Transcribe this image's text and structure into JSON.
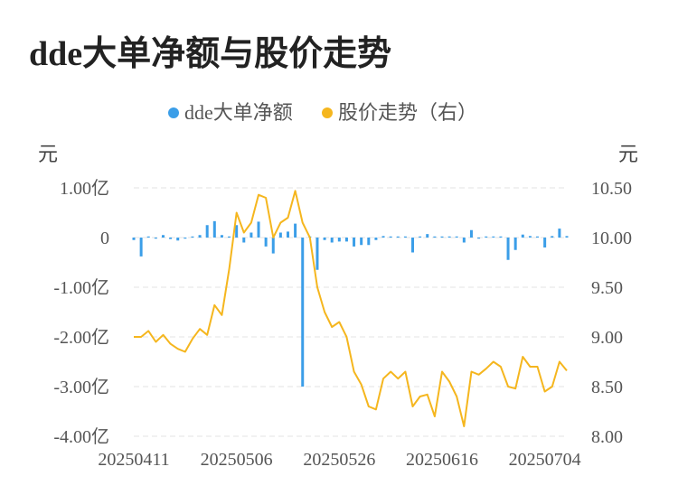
{
  "chart_data": {
    "type": "bar-line",
    "title": "dde大单净额与股价走势",
    "legend": {
      "placement": "top-center",
      "items": [
        {
          "name": "dde大单净额",
          "color": "#3b9ee8"
        },
        {
          "name": "股价走势（右）",
          "color": "#f5b61e"
        }
      ]
    },
    "y_left": {
      "unit_label": "元",
      "range": [
        -4.0,
        1.0
      ],
      "ticks": [
        {
          "value": 1.0,
          "label": "1.00亿"
        },
        {
          "value": 0,
          "label": "0"
        },
        {
          "value": -1.0,
          "label": "-1.00亿"
        },
        {
          "value": -2.0,
          "label": "-2.00亿"
        },
        {
          "value": -3.0,
          "label": "-3.00亿"
        },
        {
          "value": -4.0,
          "label": "-4.00亿"
        }
      ]
    },
    "y_right": {
      "unit_label": "元",
      "range": [
        8.0,
        10.5
      ],
      "ticks": [
        {
          "value": 10.5,
          "label": "10.50"
        },
        {
          "value": 10.0,
          "label": "10.00"
        },
        {
          "value": 9.5,
          "label": "9.50"
        },
        {
          "value": 9.0,
          "label": "9.00"
        },
        {
          "value": 8.5,
          "label": "8.50"
        },
        {
          "value": 8.0,
          "label": "8.00"
        }
      ]
    },
    "x_ticks": [
      {
        "index": 0,
        "label": "20250411"
      },
      {
        "index": 14,
        "label": "20250506"
      },
      {
        "index": 28,
        "label": "20250526"
      },
      {
        "index": 42,
        "label": "20250616"
      },
      {
        "index": 56,
        "label": "20250704"
      }
    ],
    "grid": true,
    "series": [
      {
        "name": "dde大单净额",
        "type": "bar",
        "unit": "亿",
        "values": [
          -0.05,
          -0.38,
          0.02,
          -0.02,
          0.05,
          -0.03,
          -0.06,
          -0.02,
          0.01,
          0.05,
          0.25,
          0.33,
          0.05,
          0.02,
          0.25,
          -0.1,
          0.1,
          0.32,
          -0.18,
          -0.32,
          0.1,
          0.12,
          0.28,
          -3.0,
          0.01,
          -0.65,
          -0.05,
          -0.1,
          -0.08,
          -0.08,
          -0.18,
          -0.15,
          -0.15,
          -0.05,
          0.03,
          0.02,
          0.01,
          0.02,
          -0.3,
          0.0,
          0.07,
          0.0,
          0.02,
          0.0,
          0.0,
          -0.1,
          0.15,
          -0.02,
          0.01,
          0.0,
          0.0,
          -0.45,
          -0.25,
          0.06,
          0.03,
          0.02,
          -0.2,
          0.03,
          0.18,
          0.03
        ]
      },
      {
        "name": "股价走势（右）",
        "type": "line",
        "unit": "元",
        "values": [
          9.0,
          9.0,
          9.06,
          8.95,
          9.02,
          8.93,
          8.88,
          8.85,
          8.98,
          9.08,
          9.02,
          9.32,
          9.22,
          9.68,
          10.25,
          10.05,
          10.15,
          10.43,
          10.4,
          10.0,
          10.15,
          10.2,
          10.47,
          10.15,
          10.0,
          9.5,
          9.25,
          9.1,
          9.15,
          9.0,
          8.65,
          8.52,
          8.3,
          8.27,
          8.58,
          8.65,
          8.58,
          8.65,
          8.3,
          8.4,
          8.42,
          8.2,
          8.65,
          8.55,
          8.4,
          8.1,
          8.65,
          8.62,
          8.68,
          8.75,
          8.7,
          8.5,
          8.48,
          8.8,
          8.7,
          8.7,
          8.45,
          8.5,
          8.75,
          8.66
        ]
      }
    ]
  }
}
